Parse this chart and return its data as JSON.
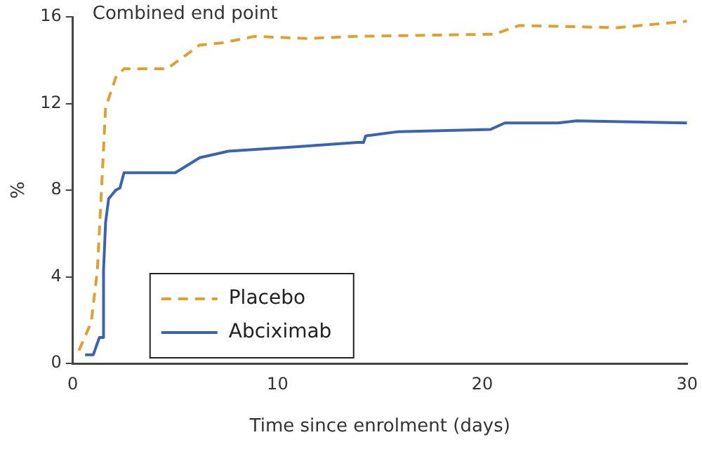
{
  "chart_data": {
    "type": "line",
    "title": "Combined end point",
    "xlabel": "Time since enrolment (days)",
    "ylabel": "%",
    "xlim": [
      0,
      30
    ],
    "xticks": [
      0,
      10,
      20,
      30
    ],
    "ylim": [
      0,
      16
    ],
    "yticks": [
      0,
      4,
      8,
      12,
      16
    ],
    "grid": false,
    "legend": "bottom left",
    "marker": "none",
    "series": [
      {
        "name": "Placebo",
        "color": "#e0a030",
        "line_style": "dashed",
        "x": [
          0.3,
          0.9,
          1.2,
          1.4,
          1.6,
          2.1,
          2.5,
          4.6,
          6.2,
          7.3,
          8.9,
          11.4,
          13.9,
          20.6,
          21.8,
          26.6,
          30
        ],
        "values": [
          0.6,
          1.9,
          4.3,
          8,
          11.8,
          13.2,
          13.6,
          13.6,
          14.7,
          14.8,
          15.1,
          15,
          15.1,
          15.2,
          15.6,
          15.5,
          15.8
        ]
      },
      {
        "name": "Abciximab",
        "color": "#3a64b0",
        "line_style": "solid",
        "x": [
          0.6,
          1,
          1.3,
          1.5,
          1.5,
          1.6,
          1.75,
          2.1,
          2.3,
          2.5,
          5,
          6.2,
          7.6,
          10.9,
          13.9,
          14.2,
          14.3,
          15.9,
          20.4,
          21.1,
          23.7,
          24.6,
          30
        ],
        "values": [
          0.4,
          0.4,
          1.2,
          1.2,
          4.3,
          6.5,
          7.6,
          8,
          8.1,
          8.8,
          8.8,
          9.5,
          9.8,
          10,
          10.2,
          10.2,
          10.5,
          10.7,
          10.8,
          11.1,
          11.1,
          11.2,
          11.1
        ]
      }
    ]
  }
}
